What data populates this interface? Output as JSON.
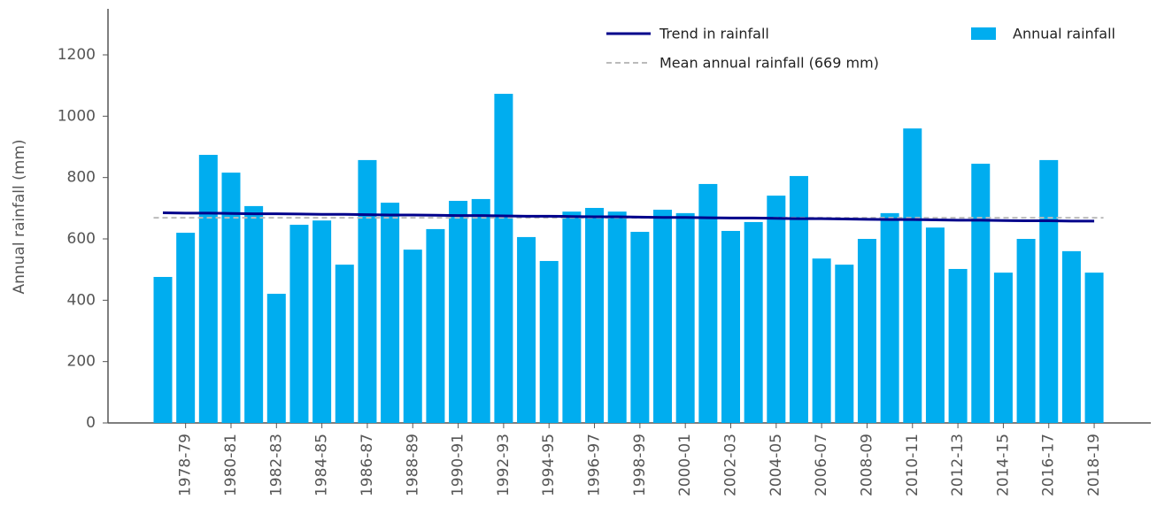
{
  "chart_data": {
    "type": "bar",
    "y_label": "Annual rainfall (mm)",
    "categories": [
      null,
      "1978-79",
      null,
      "1980-81",
      null,
      "1982-83",
      null,
      "1984-85",
      null,
      "1986-87",
      null,
      "1988-89",
      null,
      "1990-91",
      null,
      "1992-93",
      null,
      "1994-95",
      null,
      "1996-97",
      null,
      "1998-99",
      null,
      "2000-01",
      null,
      "2002-03",
      null,
      "2004-05",
      null,
      "2006-07",
      null,
      "2008-09",
      null,
      "2010-11",
      null,
      "2012-13",
      null,
      "2014-15",
      null,
      "2016-17",
      null,
      "2018-19"
    ],
    "series": [
      {
        "name": "Annual rainfall",
        "color": "#00adef",
        "values": [
          476,
          620,
          874,
          816,
          707,
          421,
          646,
          660,
          516,
          857,
          718,
          565,
          632,
          724,
          730,
          1073,
          606,
          528,
          689,
          701,
          689,
          623,
          695,
          684,
          779,
          626,
          655,
          741,
          805,
          536,
          516,
          600,
          684,
          960,
          637,
          502,
          845,
          490,
          600,
          857,
          560,
          490
        ]
      },
      {
        "name": "Trend in rainfall",
        "color": "#00008b",
        "kind": "line",
        "values": [
          685,
          684,
          684,
          683,
          682,
          682,
          681,
          680,
          680,
          679,
          678,
          678,
          677,
          676,
          676,
          675,
          674,
          674,
          673,
          672,
          672,
          671,
          670,
          670,
          669,
          668,
          668,
          667,
          666,
          666,
          665,
          664,
          663,
          663,
          662,
          661,
          661,
          660,
          659,
          659,
          658,
          658
        ]
      }
    ],
    "mean": {
      "name": "Mean annual rainfall (669 mm)",
      "value": 669,
      "color": "#bbbbbb"
    },
    "ylim": [
      0,
      1350
    ],
    "yticks": [
      0,
      200,
      400,
      600,
      800,
      1000,
      1200
    ],
    "legend": "top-right"
  }
}
